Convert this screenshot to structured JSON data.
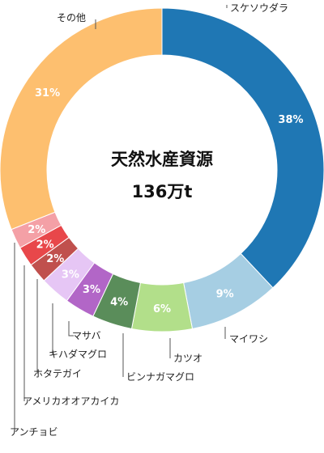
{
  "chart_data": {
    "type": "pie",
    "variant": "donut",
    "center_title": "天然水産資源",
    "center_value": "136万t",
    "slices": [
      {
        "name": "スケソウダラ",
        "value": 38,
        "label": "38%",
        "color": "#1f77b4"
      },
      {
        "name": "マイワシ",
        "value": 9,
        "label": "9%",
        "color": "#a6cee3"
      },
      {
        "name": "カツオ",
        "value": 6,
        "label": "6%",
        "color": "#b2df8a"
      },
      {
        "name": "ビンナガマグロ",
        "value": 4,
        "label": "4%",
        "color": "#5a8d5a"
      },
      {
        "name": "マサバ",
        "value": 3,
        "label": "3%",
        "color": "#b266c7"
      },
      {
        "name": "キハダマグロ",
        "value": 3,
        "label": "3%",
        "color": "#e6c6f5"
      },
      {
        "name": "ホタテガイ",
        "value": 2,
        "label": "2%",
        "color": "#c0504d"
      },
      {
        "name": "アメリカオオアカイカ",
        "value": 2,
        "label": "2%",
        "color": "#e8474a"
      },
      {
        "name": "アンチョビ",
        "value": 2,
        "label": "2%",
        "color": "#f4a0a6"
      },
      {
        "name": "その他",
        "value": 31,
        "label": "31%",
        "color": "#fdbf6f"
      }
    ]
  }
}
